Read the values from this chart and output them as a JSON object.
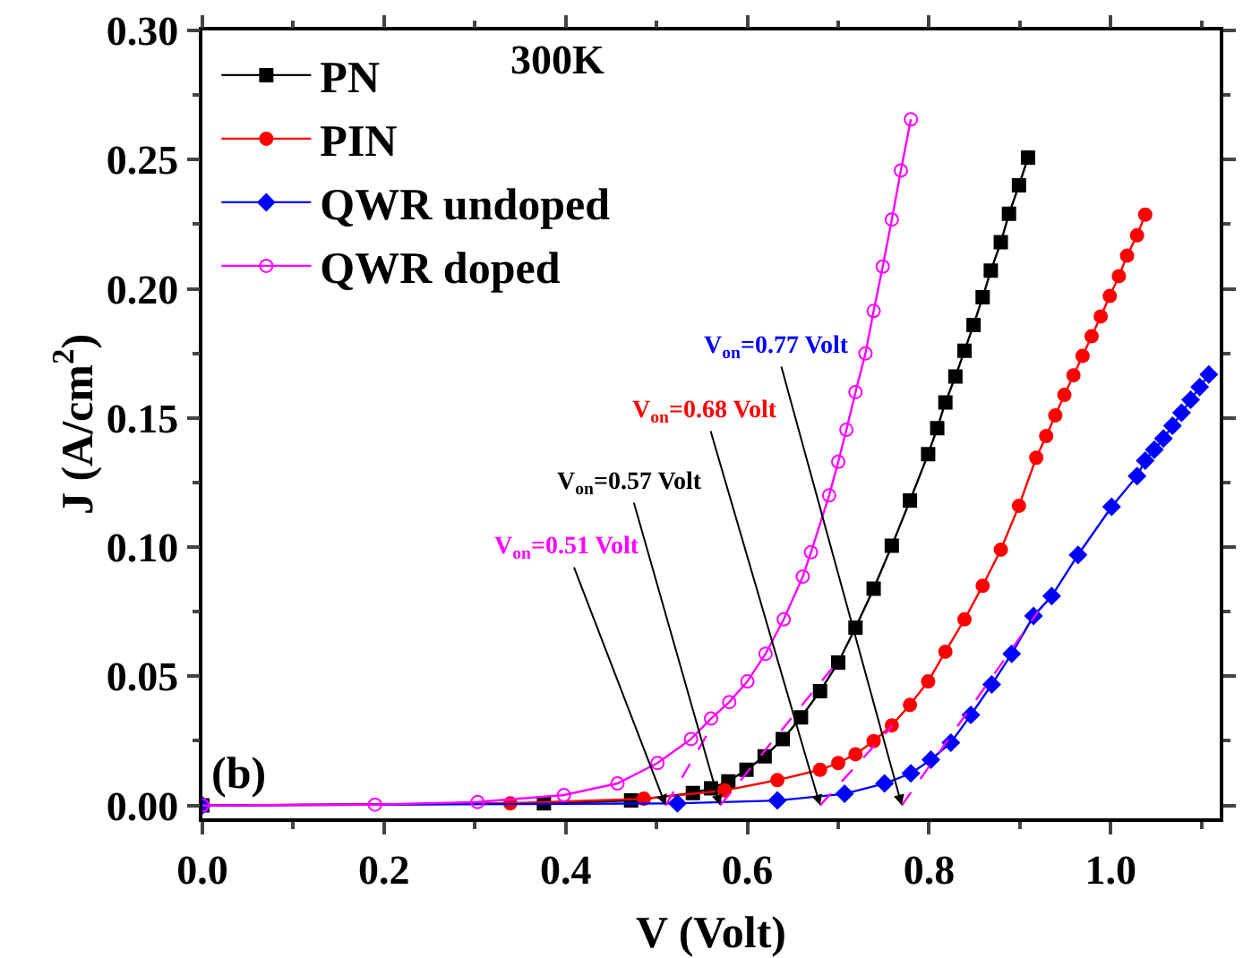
{
  "chart_data": {
    "type": "line",
    "xlabel": "V (Volt)",
    "ylabel": "J (A/cm$^{2}$)",
    "xlim": [
      0,
      1.12
    ],
    "ylim": [
      -0.005,
      0.3
    ],
    "xticks": [
      {
        "value": 0,
        "label": "0.0"
      },
      {
        "value": 0.1,
        "label": null
      },
      0.2,
      {
        "value": 0.3,
        "label": null
      },
      0.4,
      {
        "value": 0.5,
        "label": null
      },
      0.6,
      {
        "value": 0.7,
        "label": null
      },
      0.8,
      {
        "value": 0.9,
        "label": null
      },
      {
        "value": 1,
        "label": "1.0"
      },
      {
        "value": 1.1,
        "label": null
      }
    ],
    "yticks": [
      {
        "value": 0,
        "label": "0.00"
      },
      {
        "value": 0.025,
        "label": null
      },
      0.05,
      {
        "value": 0.075,
        "label": null
      },
      {
        "value": 0.1,
        "label": "0.10"
      },
      {
        "value": 0.125,
        "label": null
      },
      0.15,
      {
        "value": 0.175,
        "label": null
      },
      {
        "value": 0.2,
        "label": "0.20"
      },
      {
        "value": 0.225,
        "label": null
      },
      0.25,
      {
        "value": 0.275,
        "label": null
      },
      {
        "value": 0.3,
        "label": "0.30"
      }
    ],
    "legend": "top left",
    "grid": false,
    "series": [
      {
        "name": "PN",
        "color": "#000000",
        "marker": "square",
        "x": [
          0,
          0.376,
          0.472,
          0.54,
          0.56,
          0.579,
          0.599,
          0.619,
          0.639,
          0.659,
          0.68,
          0.7,
          0.719,
          0.739,
          0.759,
          0.779,
          0.799,
          0.809,
          0.818,
          0.829,
          0.839,
          0.849,
          0.859,
          0.868,
          0.879,
          0.888,
          0.899,
          0.909
        ],
        "values": [
          0,
          0.0008,
          0.0019,
          0.0048,
          0.0066,
          0.0093,
          0.0138,
          0.019,
          0.0257,
          0.0341,
          0.0442,
          0.0553,
          0.0688,
          0.0839,
          0.1005,
          0.118,
          0.136,
          0.146,
          0.156,
          0.166,
          0.176,
          0.186,
          0.1967,
          0.207,
          0.218,
          0.229,
          0.24,
          0.2508
        ]
      },
      {
        "name": "PIN",
        "color": "#ff0000",
        "marker": "circle",
        "x": [
          0,
          0.339,
          0.486,
          0.575,
          0.633,
          0.68,
          0.7,
          0.719,
          0.739,
          0.759,
          0.779,
          0.799,
          0.818,
          0.839,
          0.859,
          0.879,
          0.899,
          0.918,
          0.929,
          0.939,
          0.949,
          0.959,
          0.969,
          0.979,
          0.989,
          0.999,
          1.009,
          1.018,
          1.029,
          1.038
        ],
        "values": [
          0,
          0.0008,
          0.0026,
          0.0058,
          0.0098,
          0.0138,
          0.0164,
          0.0198,
          0.0249,
          0.031,
          0.0389,
          0.048,
          0.0595,
          0.072,
          0.085,
          0.099,
          0.116,
          0.1346,
          0.143,
          0.151,
          0.1589,
          0.1665,
          0.174,
          0.1816,
          0.1893,
          0.1972,
          0.2049,
          0.2128,
          0.2207,
          0.2287
        ]
      },
      {
        "name": "QWR undoped",
        "color": "#0000ff",
        "marker": "diamond",
        "x": [
          0,
          0.523,
          0.633,
          0.707,
          0.751,
          0.78,
          0.802,
          0.824,
          0.846,
          0.869,
          0.891,
          0.915,
          0.935,
          0.964,
          1.001,
          1.029,
          1.038,
          1.048,
          1.058,
          1.068,
          1.078,
          1.088,
          1.098,
          1.108
        ],
        "values": [
          0,
          0.0008,
          0.0019,
          0.0045,
          0.0085,
          0.0124,
          0.0177,
          0.0243,
          0.035,
          0.0468,
          0.0587,
          0.0733,
          0.081,
          0.097,
          0.1156,
          0.1275,
          0.1335,
          0.1377,
          0.142,
          0.147,
          0.152,
          0.157,
          0.162,
          0.1668
        ]
      },
      {
        "name": "QWR doped",
        "color": "#ff00ff",
        "marker": "circle-open",
        "x": [
          0,
          0.19,
          0.303,
          0.398,
          0.457,
          0.501,
          0.538,
          0.56,
          0.58,
          0.6,
          0.62,
          0.64,
          0.661,
          0.67,
          0.69,
          0.7,
          0.709,
          0.719,
          0.73,
          0.739,
          0.749,
          0.759,
          0.769,
          0.78
        ],
        "values": [
          0,
          0.0003,
          0.0013,
          0.004,
          0.0085,
          0.0164,
          0.0257,
          0.0336,
          0.04,
          0.048,
          0.0587,
          0.072,
          0.0886,
          0.098,
          0.12,
          0.133,
          0.1454,
          0.16,
          0.175,
          0.1914,
          0.2086,
          0.2268,
          0.2458,
          0.2656
        ]
      },
      {
        "color": "#ff00ff",
        "marker": "none",
        "line_style": "dashed",
        "x": [
          0.51,
          0.56
        ],
        "values": [
          0,
          0.03
        ]
      },
      {
        "color": "#ff00ff",
        "marker": "none",
        "line_style": "dashed",
        "x": [
          0.57,
          0.7
        ],
        "values": [
          0,
          0.056
        ]
      },
      {
        "color": "#ff00ff",
        "marker": "none",
        "line_style": "dashed",
        "x": [
          0.68,
          0.76
        ],
        "values": [
          0,
          0.031
        ]
      },
      {
        "color": "#ff00ff",
        "marker": "none",
        "line_style": "dashed",
        "x": [
          0.77,
          0.92
        ],
        "values": [
          0,
          0.075
        ]
      }
    ],
    "annotations": [
      "300K",
      "(b)",
      {
        "text": "V$_{on}$=0.77 Volt",
        "x": 0.77,
        "y": 0
      },
      {
        "text": "V$_{on}$=0.68 Volt",
        "x": 0.68,
        "y": 0
      },
      {
        "text": "V$_{on}$=0.57 Volt",
        "x": 0.57,
        "y": 0
      },
      {
        "text": "V$_{on}$=0.51 Volt",
        "x": 0.51,
        "y": 0
      }
    ]
  }
}
